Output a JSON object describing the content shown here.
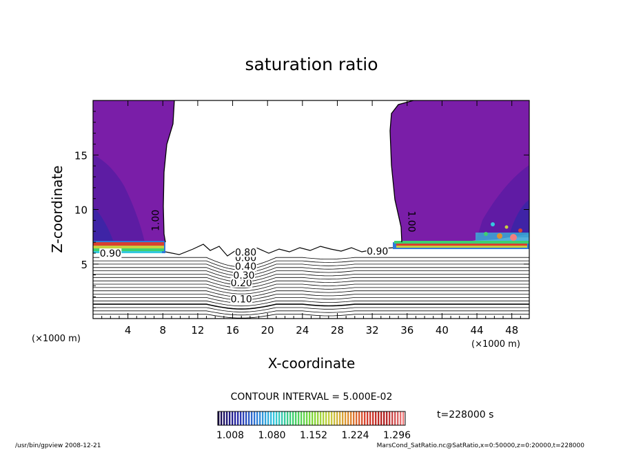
{
  "chart_data": {
    "type": "heatmap",
    "title": "saturation ratio",
    "xlabel": "X-coordinate",
    "ylabel": "Z-coordinate",
    "x_unit": "(×1000 m)",
    "z_unit": "(×1000 m)",
    "xlim": [
      0,
      50
    ],
    "ylim": [
      0,
      20
    ],
    "x_ticks": [
      4,
      8,
      12,
      16,
      20,
      24,
      28,
      32,
      36,
      40,
      44,
      48
    ],
    "y_ticks": [
      5,
      10,
      15
    ],
    "contour_interval_text": "CONTOUR INTERVAL = 5.000E-02",
    "contour_levels_labeled": [
      {
        "text": "0.10",
        "x": 17.0,
        "z": 1.6
      },
      {
        "text": "0.20",
        "x": 17.0,
        "z": 3.1
      },
      {
        "text": "0.30",
        "x": 17.3,
        "z": 3.8
      },
      {
        "text": "0.40",
        "x": 17.5,
        "z": 4.6
      },
      {
        "text": "0.60",
        "x": 17.5,
        "z": 5.4
      },
      {
        "text": "0.80",
        "x": 17.5,
        "z": 5.9
      },
      {
        "text": "0.90",
        "x": 2.0,
        "z": 5.8
      },
      {
        "text": "0.90",
        "x": 32.6,
        "z": 6.0
      },
      {
        "text": "1.00",
        "x": 7.4,
        "z": 9.0
      },
      {
        "text": "1.00",
        "x": 36.3,
        "z": 8.9
      }
    ],
    "colorbar": {
      "ticks": [
        "1.008",
        "1.080",
        "1.152",
        "1.224",
        "1.296"
      ],
      "min": 1.008,
      "max": 1.296,
      "colors": [
        "#1a0a4a",
        "#2a2aa8",
        "#2f7ad8",
        "#35c8e0",
        "#3ed070",
        "#7ad83a",
        "#c8d040",
        "#e09030",
        "#d84030",
        "#b02020",
        "#f08080"
      ]
    },
    "saturated_region_color": "#7a1ea8",
    "time_label": "t=228000 s"
  },
  "footer": {
    "left": "/usr/bin/gpview   2008-12-21",
    "right": "MarsCond_SatRatio.nc@SatRatio,x=0:50000,z=0:20000,t=228000"
  }
}
